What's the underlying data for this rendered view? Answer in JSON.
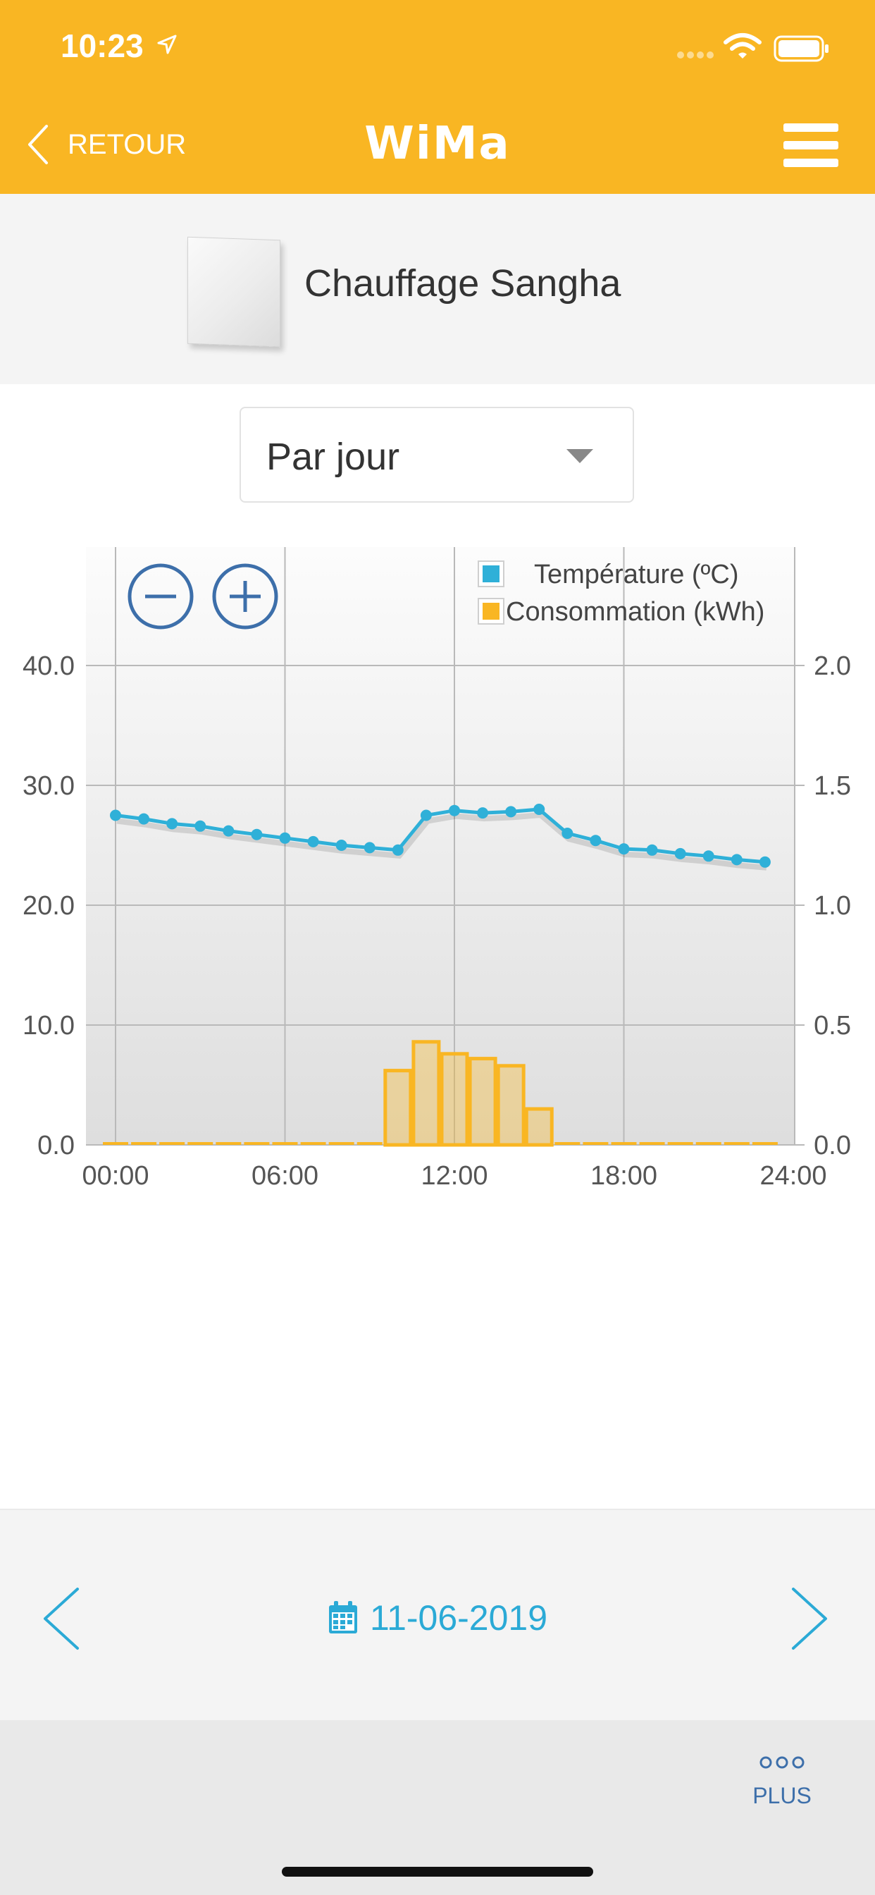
{
  "status_bar": {
    "time": "10:23"
  },
  "nav": {
    "back_label": "RETOUR",
    "title": "WiMa",
    "menu_icon": "hamburger-menu-icon"
  },
  "device": {
    "name": "Chauffage Sangha"
  },
  "period_select": {
    "value": "Par jour"
  },
  "chart_data": {
    "type": "bar+line",
    "x_tick_labels": [
      "00:00",
      "06:00",
      "12:00",
      "18:00",
      "24:00"
    ],
    "xlim": [
      0,
      24
    ],
    "y_left": {
      "ticks": [
        "0.0",
        "10.0",
        "20.0",
        "30.0",
        "40.0"
      ],
      "ylim": [
        0,
        40
      ]
    },
    "y_right": {
      "ticks": [
        "0.0",
        "0.5",
        "1.0",
        "1.5",
        "2.0"
      ],
      "ylim": [
        0,
        2.0
      ]
    },
    "grid": true,
    "legend_position": "top-right",
    "zoom_controls": [
      "zoom-out",
      "zoom-in"
    ],
    "series": [
      {
        "name": "Température (ºC)",
        "type": "line",
        "axis": "left",
        "color": "#2FB0D8",
        "x": [
          0,
          1,
          2,
          3,
          4,
          5,
          6,
          7,
          8,
          9,
          10,
          11,
          12,
          13,
          14,
          15,
          16,
          17,
          18,
          19,
          20,
          21,
          22,
          23
        ],
        "values": [
          27.5,
          27.2,
          26.8,
          26.6,
          26.2,
          25.9,
          25.6,
          25.3,
          25.0,
          24.8,
          24.6,
          27.5,
          27.9,
          27.7,
          27.8,
          28.0,
          26.0,
          25.4,
          24.7,
          24.6,
          24.3,
          24.1,
          23.8,
          23.6
        ]
      },
      {
        "name": "Consommation (kWh)",
        "type": "bar",
        "axis": "right",
        "color": "#F9B623",
        "x": [
          0,
          1,
          2,
          3,
          4,
          5,
          6,
          7,
          8,
          9,
          10,
          11,
          12,
          13,
          14,
          15,
          16,
          17,
          18,
          19,
          20,
          21,
          22,
          23
        ],
        "values": [
          0,
          0,
          0,
          0,
          0,
          0,
          0,
          0,
          0,
          0,
          0.31,
          0.43,
          0.38,
          0.36,
          0.33,
          0.15,
          0,
          0,
          0,
          0,
          0,
          0,
          0,
          0
        ]
      }
    ]
  },
  "date_nav": {
    "date": "11-06-2019"
  },
  "bottom": {
    "plus_label": "PLUS"
  },
  "colors": {
    "brand": "#F9B623",
    "accent": "#2BAAD6",
    "plus": "#3D6FAA"
  }
}
